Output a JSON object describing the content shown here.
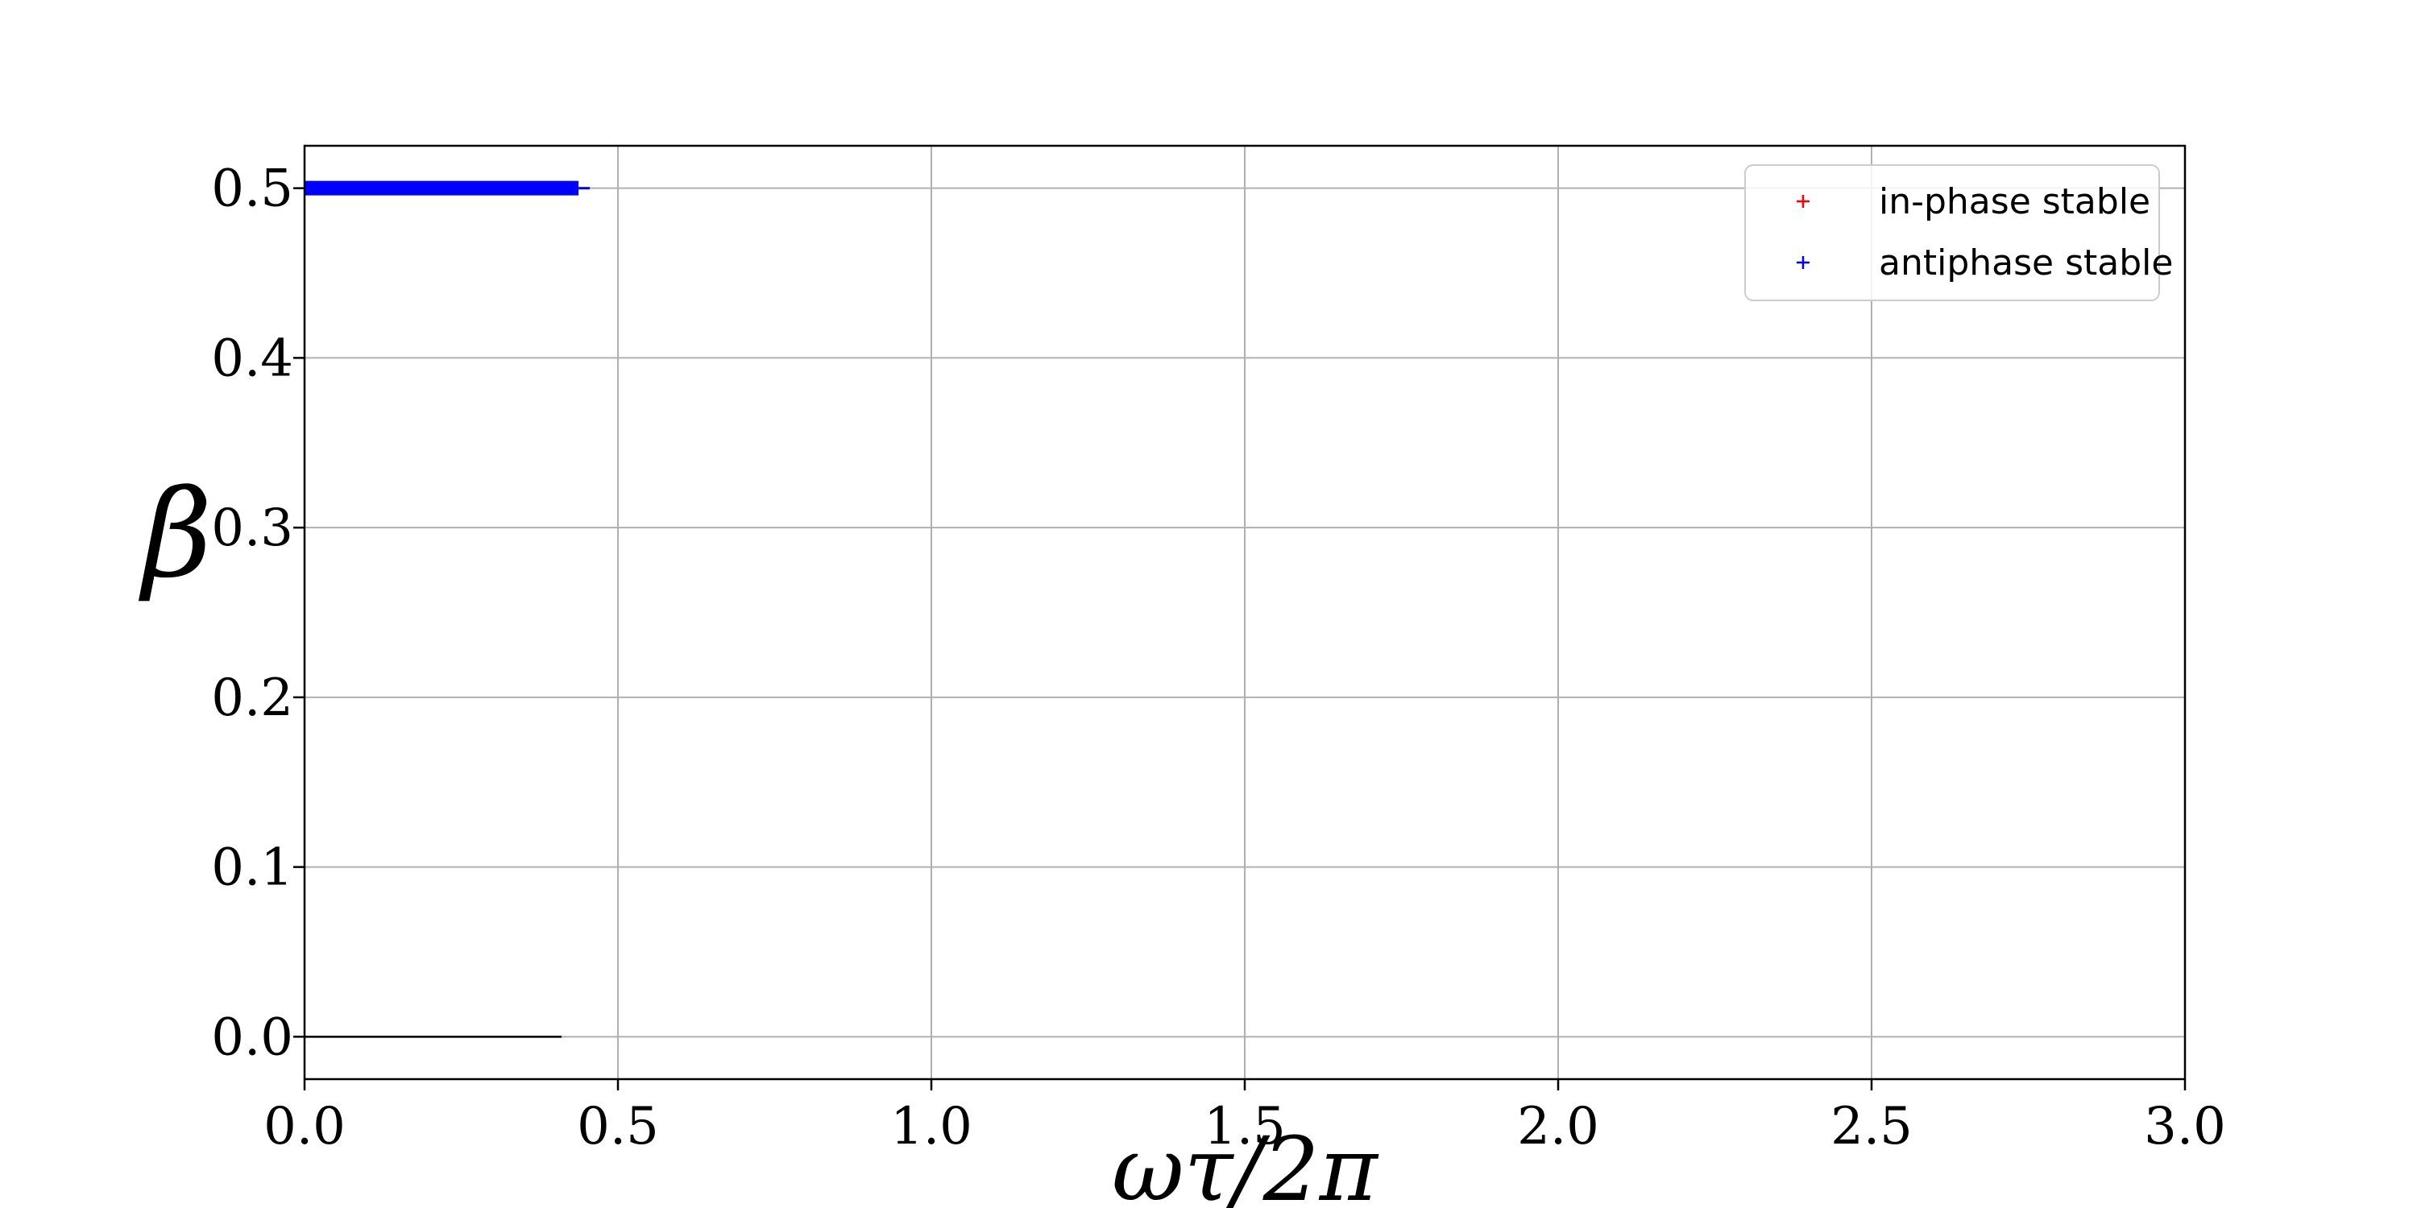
{
  "chart_data": {
    "type": "scatter",
    "xlabel": "ωτ/2π",
    "ylabel": "β",
    "xlim": [
      0,
      3
    ],
    "ylim": [
      -0.025,
      0.525
    ],
    "x_ticks": [
      0.0,
      0.5,
      1.0,
      1.5,
      2.0,
      2.5,
      3.0
    ],
    "x_tick_labels": [
      "0.0",
      "0.5",
      "1.0",
      "1.5",
      "2.0",
      "2.5",
      "3.0"
    ],
    "y_ticks": [
      0.0,
      0.1,
      0.2,
      0.3,
      0.4,
      0.5
    ],
    "y_tick_labels": [
      "0.0",
      "0.1",
      "0.2",
      "0.3",
      "0.4",
      "0.5"
    ],
    "grid": true,
    "legend_position": "top-right",
    "series": [
      {
        "name": "in-phase stable",
        "color": "#ff0000",
        "marker": "+",
        "points": []
      },
      {
        "name": "antiphase stable",
        "color": "#0000ff",
        "marker": "+",
        "x_range": [
          0.0,
          0.45
        ],
        "y": 0.5
      }
    ],
    "reference_line": {
      "color": "#000000",
      "x_range": [
        0.0,
        0.41
      ],
      "y": 0.0
    }
  }
}
